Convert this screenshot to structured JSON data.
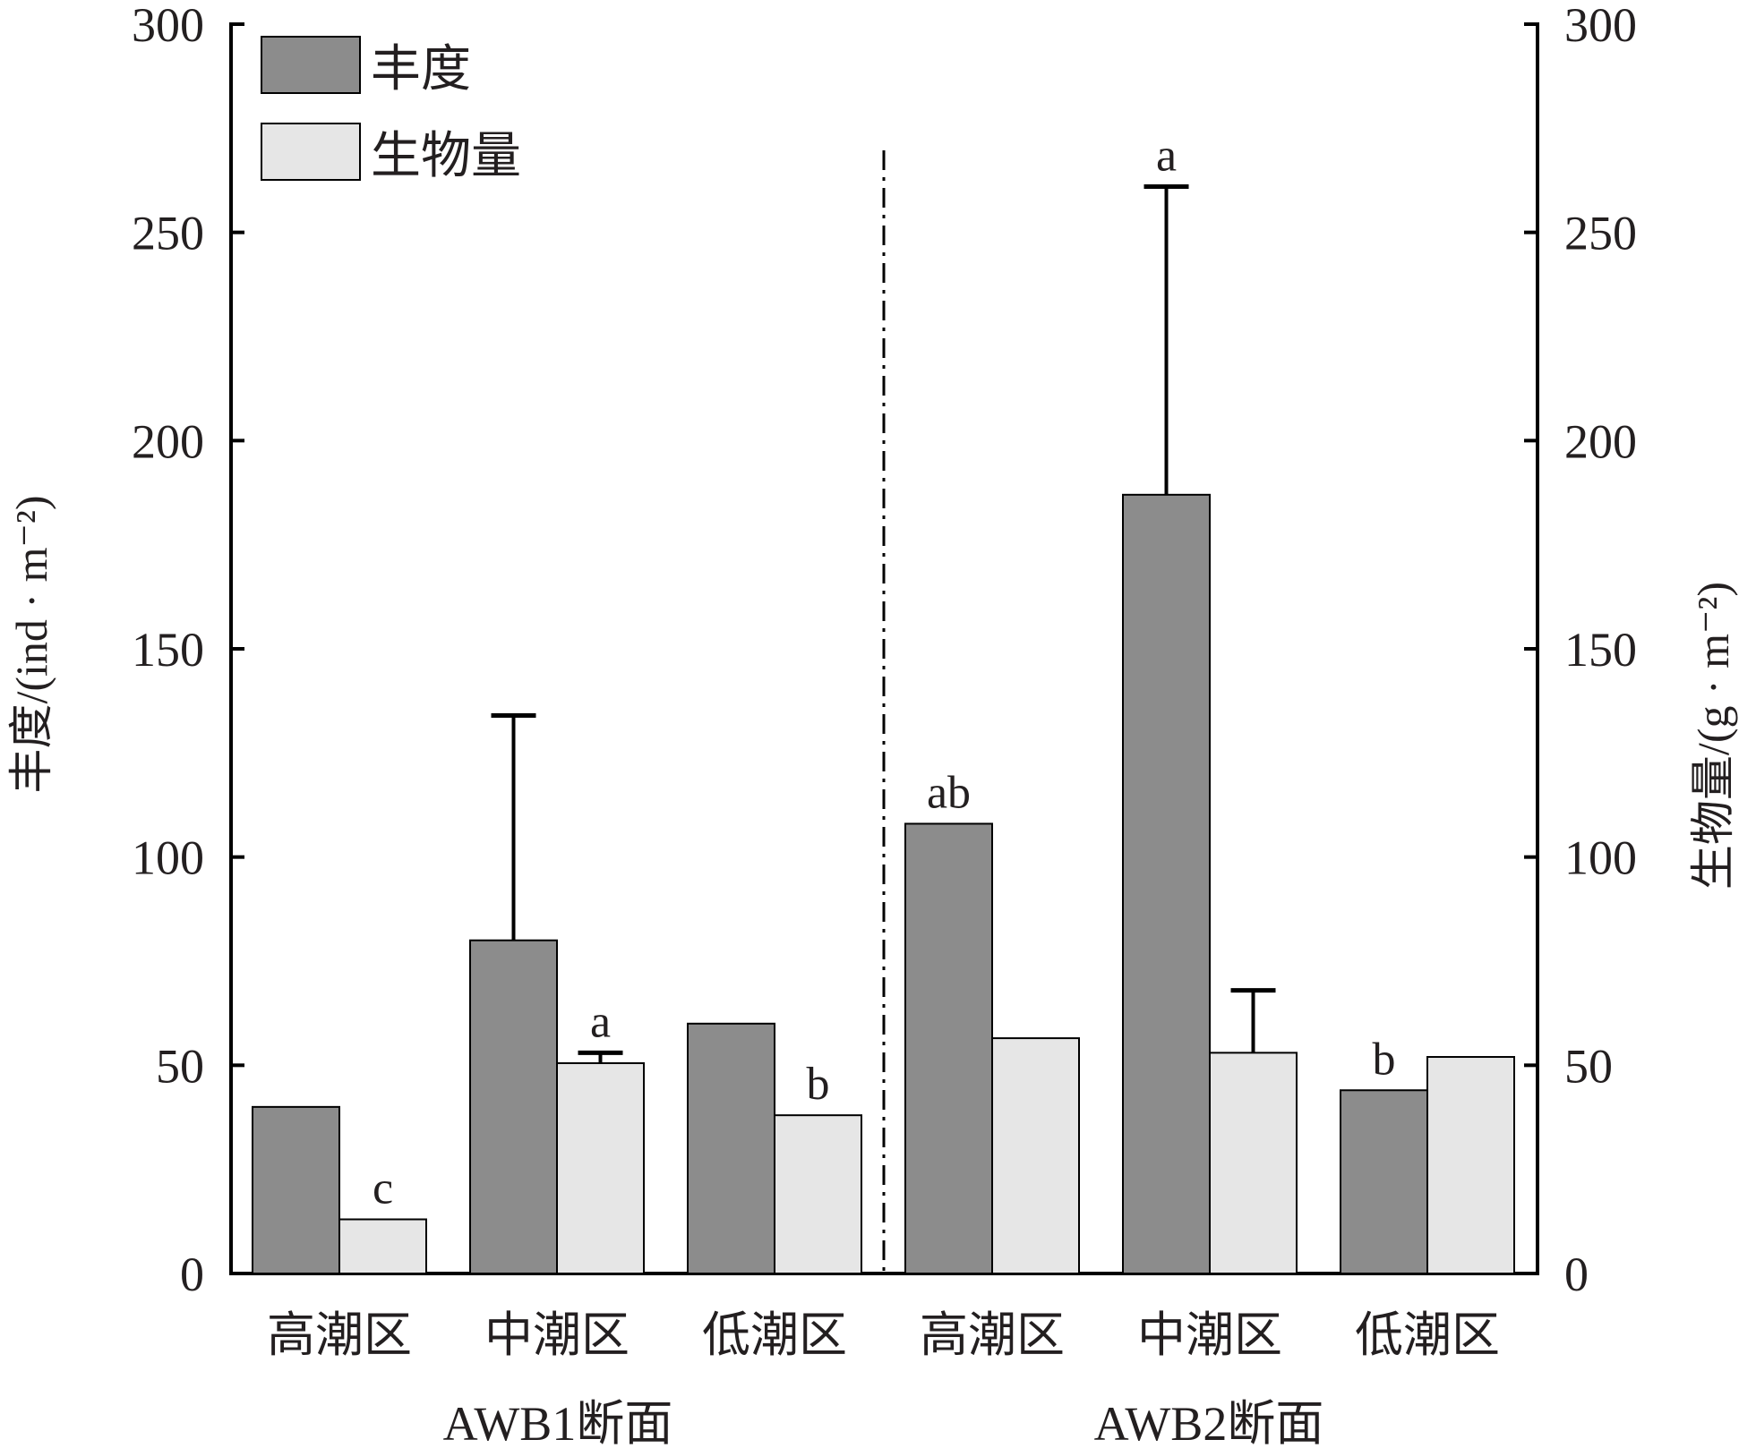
{
  "chart_data": {
    "type": "bar",
    "legend": {
      "placement": "top-left",
      "items": [
        {
          "label": "丰度",
          "color": "#8c8c8c"
        },
        {
          "label": "生物量",
          "color": "#e6e6e6"
        }
      ]
    },
    "y_left": {
      "label": "丰度/(ind · m⁻²)",
      "ylim": [
        0,
        300
      ],
      "ticks": [
        "0",
        "50",
        "100",
        "150",
        "200",
        "250",
        "300"
      ]
    },
    "y_right": {
      "label": "生物量/(g · m⁻²)",
      "ylim": [
        0,
        300
      ],
      "ticks": [
        "0",
        "50",
        "100",
        "150",
        "200",
        "250",
        "300"
      ]
    },
    "groups": [
      {
        "name": "AWB1断面",
        "categories": [
          {
            "label": "高潮区",
            "abundance": 40,
            "biomass": 13,
            "abundance_err": null,
            "biomass_err": null,
            "abundance_sig": "",
            "biomass_sig": "c"
          },
          {
            "label": "中潮区",
            "abundance": 80,
            "biomass": 50.5,
            "abundance_err": 134,
            "biomass_err": 53,
            "abundance_sig": "",
            "biomass_sig": "a"
          },
          {
            "label": "低潮区",
            "abundance": 60,
            "biomass": 38,
            "abundance_err": null,
            "biomass_err": null,
            "abundance_sig": "",
            "biomass_sig": "b"
          }
        ]
      },
      {
        "name": "AWB2断面",
        "categories": [
          {
            "label": "高潮区",
            "abundance": 108,
            "biomass": 56.5,
            "abundance_err": null,
            "biomass_err": null,
            "abundance_sig": "ab",
            "biomass_sig": ""
          },
          {
            "label": "中潮区",
            "abundance": 187,
            "biomass": 53,
            "abundance_err": 261,
            "biomass_err": 68,
            "abundance_sig": "a",
            "biomass_sig": ""
          },
          {
            "label": "低潮区",
            "abundance": 44,
            "biomass": 52,
            "abundance_err": null,
            "biomass_err": null,
            "abundance_sig": "b",
            "biomass_sig": ""
          }
        ]
      }
    ],
    "grid": false,
    "colors": {
      "abundance": "#8c8c8c",
      "biomass": "#e6e6e6",
      "axis": "#000000",
      "text": "#231f20"
    }
  }
}
